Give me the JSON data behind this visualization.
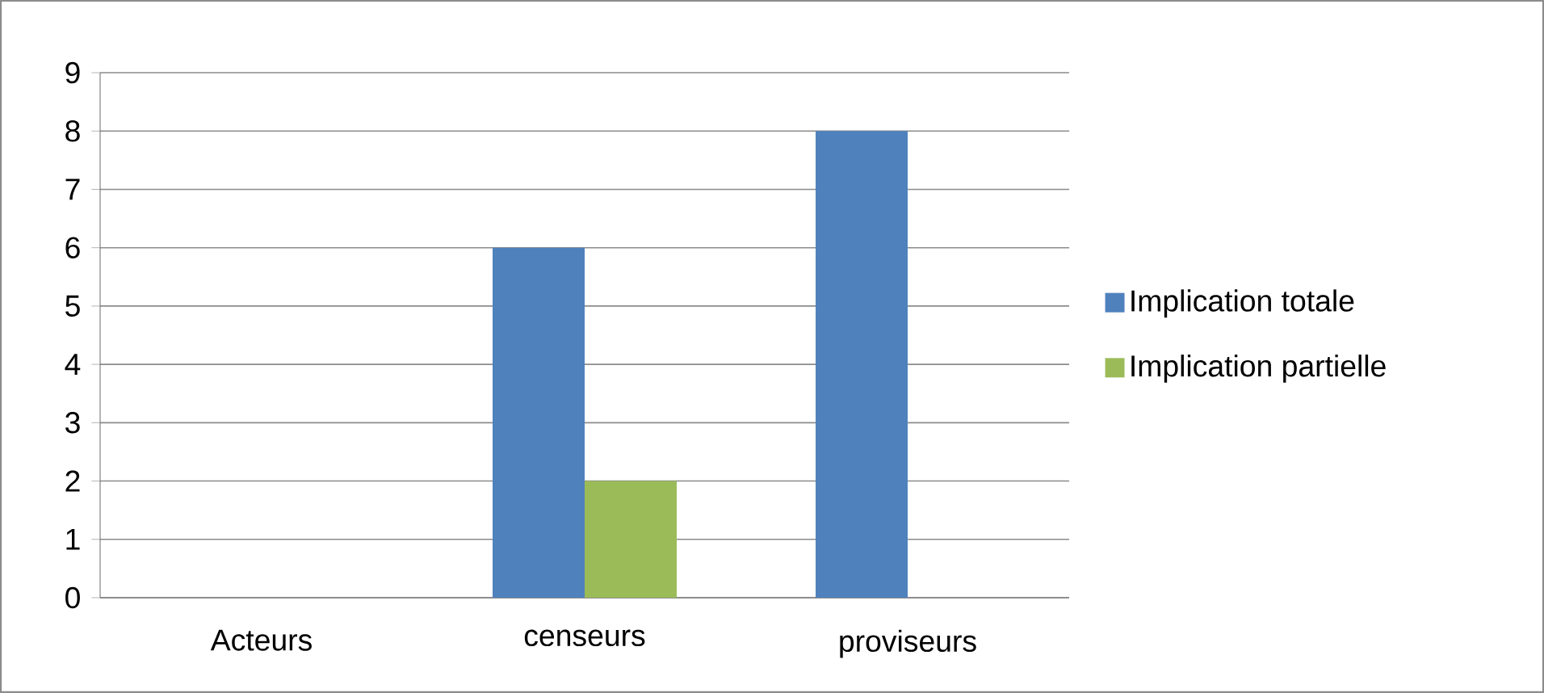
{
  "chart_data": {
    "type": "bar",
    "categories": [
      "Acteurs",
      "censeurs",
      "proviseurs"
    ],
    "series": [
      {
        "name": "Implication totale",
        "color": "#4f81bd",
        "values": [
          null,
          6,
          8
        ]
      },
      {
        "name": "Implication partielle",
        "color": "#9bbb59",
        "values": [
          null,
          2,
          null
        ]
      }
    ],
    "ylim": [
      0,
      9
    ],
    "yticks": [
      0,
      1,
      2,
      3,
      4,
      5,
      6,
      7,
      8,
      9
    ],
    "grid": "y",
    "legend": "right"
  }
}
